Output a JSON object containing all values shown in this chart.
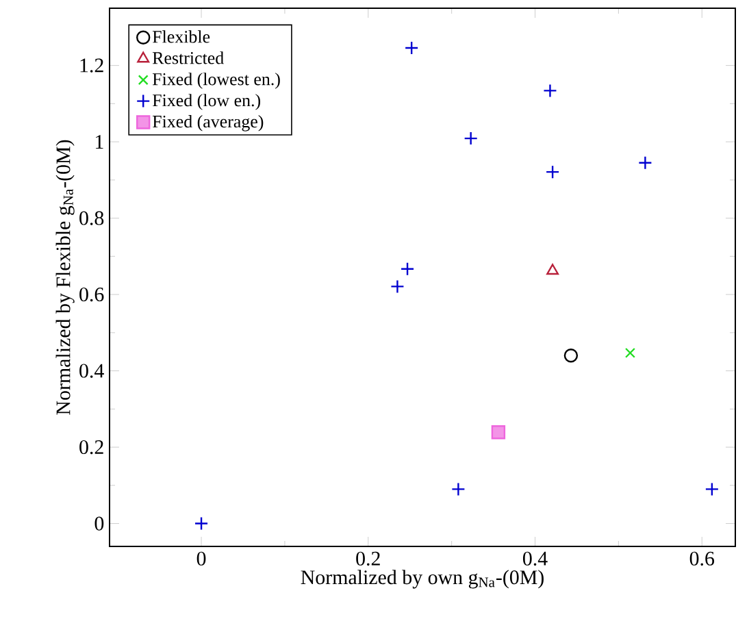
{
  "chart_data": {
    "type": "scatter",
    "xlabel": "Normalized by own g$_{Na}$-(0M)",
    "ylabel": "Normalized by Flexible g$_{Na}$-(0M)",
    "xlim": [
      -0.11,
      0.64
    ],
    "ylim": [
      -0.06,
      1.35
    ],
    "xticks": [
      0,
      0.2,
      0.4,
      0.6
    ],
    "yticks": [
      0,
      0.2,
      0.4,
      0.6,
      0.8,
      1,
      1.2
    ],
    "grid": false,
    "legend": "top left",
    "series": [
      {
        "name": "Flexible",
        "color": "#000000",
        "marker": "circle",
        "x": [
          0.443
        ],
        "values": [
          0.44
        ]
      },
      {
        "name": "Restricted",
        "color": "#b8203a",
        "marker": "triangle",
        "x": [
          0.421
        ],
        "values": [
          0.662
        ]
      },
      {
        "name": "Fixed (lowest en.)",
        "color": "#22dd22",
        "marker": "x",
        "x": [
          0.514
        ],
        "values": [
          0.447
        ]
      },
      {
        "name": "Fixed (low en.)",
        "color": "#0000d0",
        "marker": "cross",
        "x": [
          0,
          0.308,
          0.612,
          0.252,
          0.418,
          0.323,
          0.421,
          0.532,
          0.247,
          0.235
        ],
        "values": [
          0,
          0.09,
          0.09,
          1.246,
          1.134,
          1.009,
          0.921,
          0.945,
          0.667,
          0.621
        ]
      },
      {
        "name": "Fixed (average)",
        "color": "#ee66dd",
        "marker": "square",
        "x": [
          0.356
        ],
        "values": [
          0.239
        ]
      }
    ]
  }
}
